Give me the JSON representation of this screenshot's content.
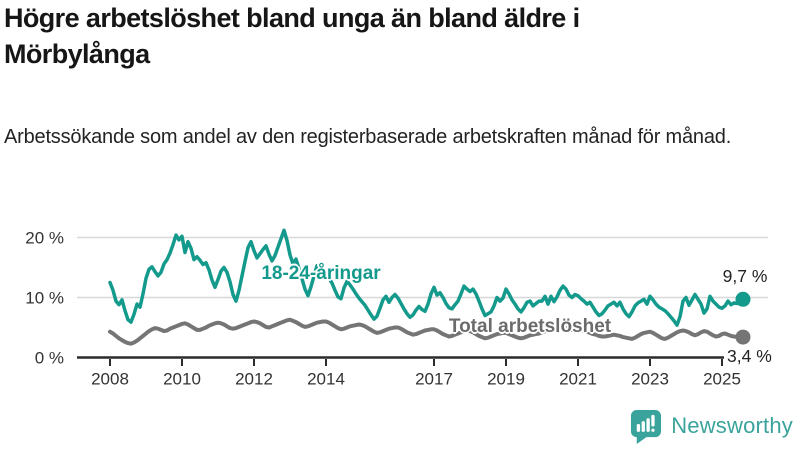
{
  "header": {
    "title": "Högre arbetslöshet bland unga än bland äldre i Mörbylånga",
    "title_lines": [
      "Högre arbetslöshet bland unga än bland äldre i",
      "Mörbylånga"
    ],
    "subtitle": "Arbetssökande som andel av den registerbaserade arbetskraften månad för månad."
  },
  "branding": {
    "name": "Newsworthy",
    "color": "#3aa49c",
    "icon": "bar-chart-speech-bubble-icon"
  },
  "colors": {
    "youth_line": "#149a8c",
    "total_line": "#757575",
    "grid": "#d8d8d8",
    "axis": "#2b2b2b",
    "text": "#232323"
  },
  "chart_data": {
    "type": "line",
    "title": "Högre arbetslöshet bland unga än bland äldre i Mörbylånga",
    "subtitle": "Arbetssökande som andel av den registerbaserade arbetskraften månad för månad.",
    "unit": "%",
    "grid": "horizontal",
    "legend_position": "inline-labels-on-chart",
    "x": {
      "start": "2008-01",
      "end": "2025-08",
      "interval": "monthly",
      "points": 212
    },
    "y_axis": {
      "range": [
        0,
        22
      ],
      "ticks": [
        {
          "value": 0,
          "label": "0 %"
        },
        {
          "value": 10,
          "label": "10 %"
        },
        {
          "value": 20,
          "label": "20 %"
        }
      ]
    },
    "x_axis": {
      "ticks": [
        {
          "year": 2008,
          "label": "2008"
        },
        {
          "year": 2010,
          "label": "2010"
        },
        {
          "year": 2012,
          "label": "2012"
        },
        {
          "year": 2014,
          "label": "2014"
        },
        {
          "year": 2017,
          "label": "2017"
        },
        {
          "year": 2019,
          "label": "2019"
        },
        {
          "year": 2021,
          "label": "2021"
        },
        {
          "year": 2023,
          "label": "2023"
        },
        {
          "year": 2025,
          "label": "2025"
        }
      ]
    },
    "series": [
      {
        "name": "18-24-åringar",
        "color": "#149a8c",
        "line_width": 3.5,
        "end_label": "9,7 %",
        "last_value": 9.7,
        "values": [
          12.5,
          11.2,
          9.4,
          8.8,
          9.6,
          7.8,
          6.3,
          5.9,
          7.2,
          8.9,
          8.4,
          10.6,
          13.2,
          14.7,
          15.1,
          14.3,
          13.6,
          14.2,
          15.6,
          16.3,
          17.4,
          18.8,
          20.4,
          19.6,
          20.2,
          17.5,
          19.3,
          18.2,
          16.3,
          16.8,
          16.2,
          15.5,
          15.8,
          14.6,
          12.9,
          11.7,
          13.0,
          14.4,
          15.0,
          14.2,
          12.6,
          10.5,
          9.4,
          11.2,
          13.6,
          16.0,
          18.3,
          19.3,
          17.8,
          16.6,
          17.3,
          18.0,
          18.6,
          17.2,
          16.1,
          17.0,
          18.4,
          19.8,
          21.2,
          19.5,
          17.1,
          15.6,
          16.4,
          14.8,
          13.1,
          11.4,
          10.3,
          11.8,
          13.6,
          15.3,
          15.0,
          14.3,
          13.8,
          13.2,
          12.4,
          11.2,
          10.1,
          9.8,
          11.6,
          12.7,
          12.1,
          11.4,
          10.6,
          9.9,
          9.3,
          8.7,
          7.9,
          7.1,
          6.4,
          6.9,
          8.2,
          9.6,
          10.2,
          9.2,
          10.0,
          10.5,
          9.9,
          9.0,
          8.1,
          7.3,
          6.7,
          7.1,
          7.9,
          8.5,
          8.0,
          7.7,
          8.9,
          10.6,
          11.7,
          10.4,
          10.8,
          10.0,
          9.0,
          8.3,
          8.1,
          8.8,
          9.4,
          10.6,
          11.9,
          11.4,
          11.0,
          11.4,
          10.6,
          9.4,
          8.1,
          7.0,
          7.3,
          7.6,
          8.6,
          10.0,
          9.4,
          9.9,
          11.4,
          10.6,
          9.6,
          8.9,
          8.1,
          7.6,
          8.3,
          9.2,
          9.4,
          8.6,
          9.0,
          9.4,
          9.4,
          10.2,
          8.9,
          10.2,
          9.3,
          10.1,
          11.2,
          11.9,
          11.4,
          10.4,
          10.0,
          10.5,
          10.3,
          9.8,
          9.4,
          8.9,
          9.2,
          8.4,
          7.6,
          7.0,
          7.3,
          7.9,
          8.6,
          8.9,
          9.2,
          8.6,
          9.2,
          8.1,
          7.3,
          6.8,
          7.6,
          8.6,
          9.1,
          9.4,
          9.7,
          8.9,
          10.2,
          9.6,
          8.9,
          8.4,
          8.1,
          7.8,
          7.3,
          6.7,
          6.1,
          5.4,
          6.8,
          9.4,
          10.0,
          8.7,
          9.6,
          10.5,
          9.7,
          8.9,
          7.4,
          8.1,
          10.2,
          9.4,
          8.9,
          8.4,
          8.2,
          8.6,
          9.4,
          8.8,
          9.1,
          9.0,
          9.3,
          9.7
        ]
      },
      {
        "name": "Total arbetslöshet",
        "color": "#757575",
        "line_width": 4,
        "end_label": "3,4 %",
        "last_value": 3.4,
        "values": [
          4.3,
          4.0,
          3.6,
          3.2,
          2.9,
          2.6,
          2.4,
          2.3,
          2.5,
          2.8,
          3.2,
          3.6,
          4.0,
          4.4,
          4.7,
          4.9,
          4.8,
          4.6,
          4.4,
          4.5,
          4.8,
          5.0,
          5.2,
          5.4,
          5.6,
          5.7,
          5.5,
          5.2,
          4.9,
          4.6,
          4.6,
          4.8,
          5.0,
          5.3,
          5.5,
          5.7,
          5.8,
          5.7,
          5.5,
          5.2,
          4.9,
          4.8,
          4.9,
          5.1,
          5.3,
          5.5,
          5.7,
          5.9,
          6.0,
          5.9,
          5.7,
          5.4,
          5.1,
          5.0,
          5.2,
          5.4,
          5.6,
          5.8,
          6.0,
          6.2,
          6.3,
          6.1,
          5.9,
          5.6,
          5.3,
          5.1,
          5.2,
          5.4,
          5.6,
          5.8,
          5.9,
          6.0,
          6.0,
          5.8,
          5.5,
          5.2,
          4.9,
          4.7,
          4.8,
          5.0,
          5.2,
          5.3,
          5.4,
          5.5,
          5.4,
          5.2,
          4.9,
          4.6,
          4.3,
          4.1,
          4.2,
          4.4,
          4.6,
          4.8,
          4.9,
          5.0,
          5.0,
          4.8,
          4.5,
          4.2,
          4.0,
          3.8,
          3.9,
          4.1,
          4.3,
          4.5,
          4.6,
          4.7,
          4.7,
          4.5,
          4.2,
          3.9,
          3.7,
          3.5,
          3.6,
          3.8,
          4.0,
          4.2,
          4.3,
          4.4,
          4.4,
          4.2,
          3.9,
          3.6,
          3.4,
          3.2,
          3.3,
          3.5,
          3.7,
          3.9,
          4.0,
          4.1,
          4.1,
          3.9,
          3.7,
          3.5,
          3.3,
          3.2,
          3.3,
          3.5,
          3.7,
          3.8,
          3.9,
          4.0,
          4.2,
          4.4,
          4.8,
          5.2,
          5.4,
          5.3,
          5.1,
          5.0,
          4.9,
          4.7,
          4.6,
          4.6,
          4.7,
          4.6,
          4.5,
          4.3,
          4.1,
          3.9,
          3.8,
          3.6,
          3.5,
          3.5,
          3.6,
          3.7,
          3.8,
          3.7,
          3.6,
          3.4,
          3.3,
          3.2,
          3.1,
          3.3,
          3.6,
          3.9,
          4.1,
          4.2,
          4.3,
          4.1,
          3.8,
          3.5,
          3.2,
          3.1,
          3.3,
          3.6,
          3.9,
          4.2,
          4.4,
          4.5,
          4.4,
          4.2,
          3.9,
          3.7,
          3.9,
          4.2,
          4.4,
          4.3,
          4.0,
          3.7,
          3.5,
          3.6,
          3.9,
          4.0,
          3.8,
          3.6,
          3.5,
          3.4,
          3.3,
          3.4
        ]
      }
    ]
  }
}
